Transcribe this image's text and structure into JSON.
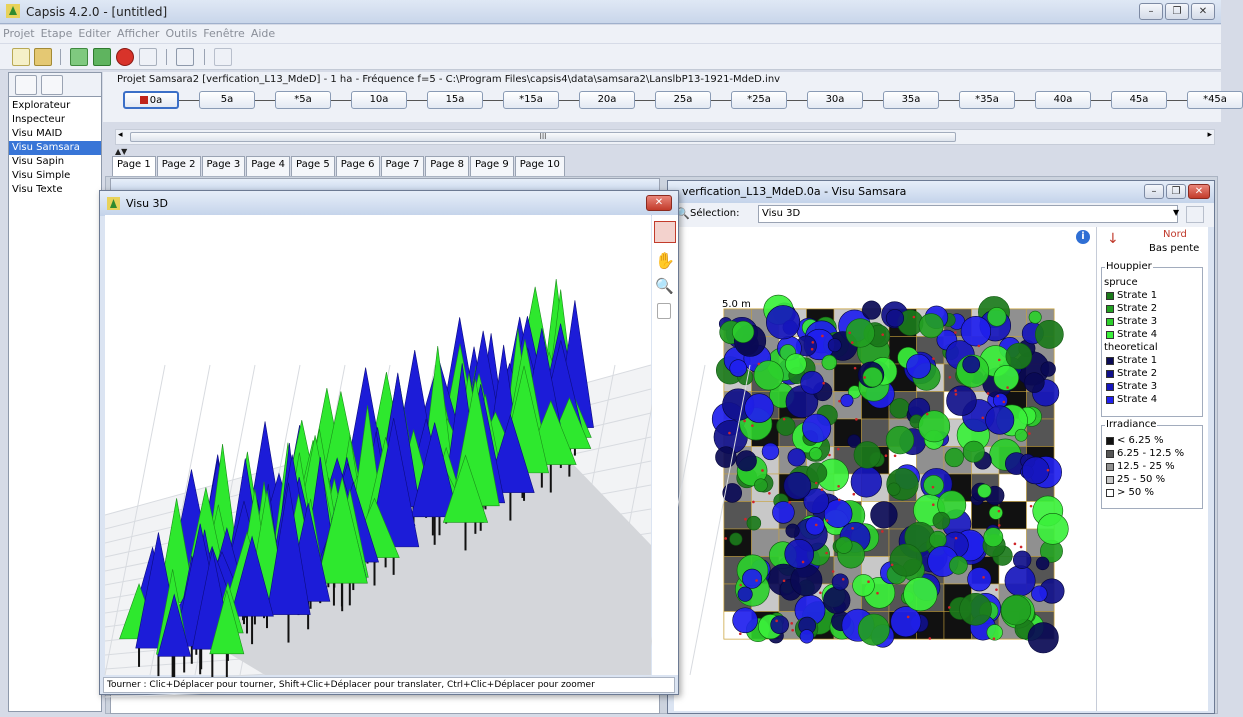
{
  "app": {
    "title": "Capsis 4.2.0 - [untitled]"
  },
  "menu": [
    "Projet",
    "Etape",
    "Editer",
    "Afficher",
    "Outils",
    "Fenêtre",
    "Aide"
  ],
  "sidebar": {
    "items": [
      "Explorateur",
      "Inspecteur",
      "Visu MAID",
      "Visu Samsara",
      "Visu Sapin",
      "Visu Simple",
      "Visu Texte"
    ],
    "selected": "Visu Samsara"
  },
  "project": {
    "title": "Projet Samsara2 [verfication_L13_MdeD] - 1 ha - Fréquence f=5 - C:\\Program Files\\capsis4\\data\\samsara2\\LanslbP13-1921-MdeD.inv",
    "steps": [
      "0a",
      "5a",
      "*5a",
      "10a",
      "15a",
      "*15a",
      "20a",
      "25a",
      "*25a",
      "30a",
      "35a",
      "*35a",
      "40a",
      "45a",
      "*45a"
    ],
    "current_step": "0a"
  },
  "scroll": {
    "label": "III"
  },
  "pages": [
    "Page 1",
    "Page 2",
    "Page 3",
    "Page 4",
    "Page 5",
    "Page 6",
    "Page 7",
    "Page 8",
    "Page 9",
    "Page 10"
  ],
  "visu3d": {
    "title": "Visu 3D",
    "status": "Tourner : Clic+Déplacer pour tourner, Shift+Clic+Déplacer pour translater, Ctrl+Clic+Déplacer pour zoomer",
    "colors": {
      "green": "#2ee82e",
      "blue": "#1c1cd8"
    }
  },
  "samsara": {
    "title": "verfication_L13_MdeD.0a - Visu Samsara",
    "selection_label": "Sélection:",
    "selection_value": "Visu 3D",
    "scale_label": "5.0 m",
    "north": "Nord",
    "slope": "Bas pente",
    "houppier": {
      "title": "Houppier",
      "groups": [
        {
          "name": "spruce",
          "strata": [
            {
              "label": "Strate 1",
              "color": "#1b7a1b"
            },
            {
              "label": "Strate 2",
              "color": "#22a022"
            },
            {
              "label": "Strate 3",
              "color": "#2ccf2c"
            },
            {
              "label": "Strate 4",
              "color": "#3bf03b"
            }
          ]
        },
        {
          "name": "theoretical",
          "strata": [
            {
              "label": "Strate 1",
              "color": "#0a0a55"
            },
            {
              "label": "Strate 2",
              "color": "#10108a"
            },
            {
              "label": "Strate 3",
              "color": "#1616bd"
            },
            {
              "label": "Strate 4",
              "color": "#2020ee"
            }
          ]
        }
      ]
    },
    "irradiance": {
      "title": "Irradiance",
      "classes": [
        {
          "label": "< 6.25 %",
          "color": "#111111"
        },
        {
          "label": "6.25 - 12.5 %",
          "color": "#555555"
        },
        {
          "label": "12.5 - 25 %",
          "color": "#909090"
        },
        {
          "label": "25 - 50 %",
          "color": "#c8c8c8"
        },
        {
          "label": "> 50 %",
          "color": "#ffffff"
        }
      ]
    }
  }
}
